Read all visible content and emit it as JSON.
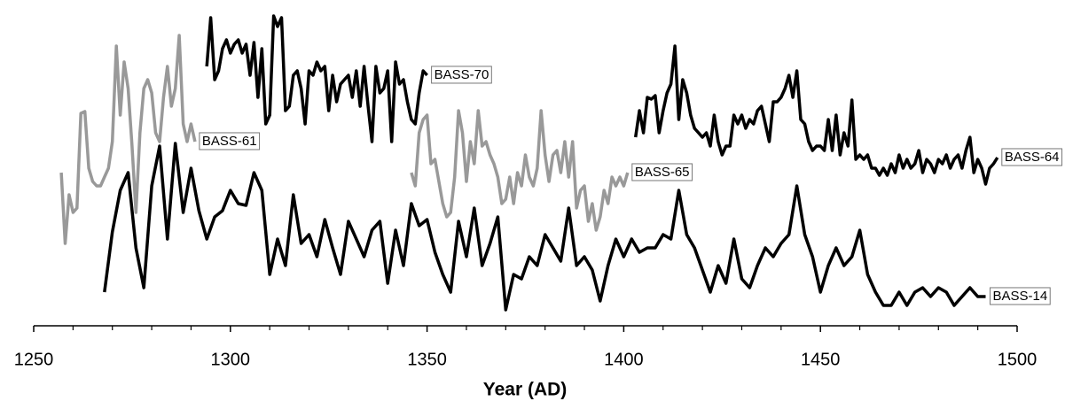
{
  "chart_data": {
    "type": "line",
    "x_label": "Year (AD)",
    "xlim": [
      1250,
      1500
    ],
    "xticks": [
      1250,
      1300,
      1350,
      1400,
      1450,
      1500
    ],
    "xminor_ticks": [
      1260,
      1270,
      1280,
      1290,
      1310,
      1320,
      1330,
      1340,
      1360,
      1370,
      1380,
      1390,
      1410,
      1420,
      1430,
      1440,
      1460,
      1470,
      1480,
      1490
    ],
    "ylim": [
      0,
      360
    ],
    "series": [
      {
        "name": "BASS-61",
        "color": "#999999",
        "x": [
          1257,
          1258,
          1259,
          1260,
          1261,
          1262,
          1263,
          1264,
          1265,
          1266,
          1267,
          1268,
          1269,
          1270,
          1271,
          1272,
          1273,
          1274,
          1275,
          1276,
          1277,
          1278,
          1279,
          1280,
          1281,
          1282,
          1283,
          1284,
          1285,
          1286,
          1287,
          1288,
          1289,
          1290,
          1291
        ],
        "values": [
          173,
          93,
          148,
          128,
          133,
          240,
          242,
          178,
          163,
          158,
          158,
          168,
          178,
          208,
          316,
          238,
          298,
          268,
          203,
          128,
          218,
          268,
          278,
          263,
          218,
          208,
          258,
          293,
          248,
          268,
          328,
          228,
          208,
          228,
          208
        ]
      },
      {
        "name": "BASS-70",
        "color": "#000000",
        "x": [
          1294,
          1295,
          1296,
          1297,
          1298,
          1299,
          1300,
          1301,
          1302,
          1303,
          1304,
          1305,
          1306,
          1307,
          1308,
          1309,
          1310,
          1311,
          1312,
          1313,
          1314,
          1315,
          1316,
          1317,
          1318,
          1319,
          1320,
          1321,
          1322,
          1323,
          1324,
          1325,
          1326,
          1327,
          1328,
          1329,
          1330,
          1331,
          1332,
          1333,
          1334,
          1335,
          1336,
          1337,
          1338,
          1339,
          1340,
          1341,
          1342,
          1343,
          1344,
          1345,
          1346,
          1347,
          1348,
          1349,
          1350
        ],
        "values": [
          293,
          348,
          278,
          288,
          313,
          323,
          308,
          318,
          323,
          308,
          318,
          283,
          320,
          258,
          313,
          228,
          238,
          350,
          338,
          348,
          243,
          248,
          283,
          288,
          268,
          228,
          288,
          283,
          298,
          288,
          293,
          243,
          283,
          253,
          273,
          278,
          283,
          258,
          288,
          248,
          293,
          248,
          208,
          293,
          263,
          268,
          288,
          208,
          298,
          273,
          278,
          253,
          233,
          228,
          263,
          288,
          283
        ]
      },
      {
        "name": "BASS-65",
        "color": "#999999",
        "x": [
          1346,
          1347,
          1348,
          1349,
          1350,
          1351,
          1352,
          1353,
          1354,
          1355,
          1356,
          1357,
          1358,
          1359,
          1360,
          1361,
          1362,
          1363,
          1364,
          1365,
          1366,
          1367,
          1368,
          1369,
          1370,
          1371,
          1372,
          1373,
          1374,
          1375,
          1376,
          1377,
          1378,
          1379,
          1380,
          1381,
          1382,
          1383,
          1384,
          1385,
          1386,
          1387,
          1388,
          1389,
          1390,
          1391,
          1392,
          1393,
          1394,
          1395,
          1396,
          1397,
          1398,
          1399,
          1400,
          1401
        ],
        "values": [
          173,
          158,
          218,
          233,
          238,
          183,
          188,
          163,
          138,
          123,
          128,
          168,
          243,
          218,
          163,
          208,
          183,
          243,
          203,
          208,
          193,
          183,
          168,
          138,
          143,
          168,
          138,
          173,
          158,
          193,
          168,
          158,
          178,
          243,
          193,
          163,
          193,
          198,
          173,
          208,
          168,
          208,
          133,
          153,
          158,
          118,
          138,
          108,
          123,
          153,
          138,
          168,
          158,
          168,
          158,
          173
        ]
      },
      {
        "name": "BASS-64",
        "color": "#000000",
        "x": [
          1403,
          1404,
          1405,
          1406,
          1407,
          1408,
          1409,
          1410,
          1411,
          1412,
          1413,
          1414,
          1415,
          1416,
          1417,
          1418,
          1419,
          1420,
          1421,
          1422,
          1423,
          1424,
          1425,
          1426,
          1427,
          1428,
          1429,
          1430,
          1431,
          1432,
          1433,
          1434,
          1435,
          1436,
          1437,
          1438,
          1439,
          1440,
          1441,
          1442,
          1443,
          1444,
          1445,
          1446,
          1447,
          1448,
          1449,
          1450,
          1451,
          1452,
          1453,
          1454,
          1455,
          1456,
          1457,
          1458,
          1459,
          1460,
          1461,
          1462,
          1463,
          1464,
          1465,
          1466,
          1467,
          1468,
          1469,
          1470,
          1471,
          1472,
          1473,
          1474,
          1475,
          1476,
          1477,
          1478,
          1479,
          1480,
          1481,
          1482,
          1483,
          1484,
          1485,
          1486,
          1487,
          1488,
          1489,
          1490,
          1491,
          1492,
          1493,
          1494,
          1495
        ],
        "values": [
          213,
          243,
          218,
          258,
          256,
          260,
          218,
          243,
          263,
          273,
          316,
          233,
          278,
          263,
          238,
          223,
          218,
          213,
          218,
          203,
          238,
          208,
          193,
          203,
          203,
          238,
          228,
          238,
          223,
          233,
          228,
          243,
          248,
          228,
          208,
          253,
          253,
          258,
          268,
          283,
          258,
          288,
          233,
          228,
          208,
          198,
          203,
          203,
          198,
          233,
          198,
          238,
          193,
          218,
          203,
          255,
          188,
          193,
          188,
          193,
          178,
          178,
          170,
          178,
          170,
          183,
          173,
          193,
          178,
          188,
          178,
          183,
          198,
          173,
          188,
          183,
          173,
          188,
          183,
          193,
          178,
          188,
          193,
          178,
          198,
          213,
          173,
          188,
          178,
          160,
          178,
          183,
          190
        ]
      },
      {
        "name": "BASS-14",
        "color": "#000000",
        "x": [
          1268,
          1270,
          1272,
          1274,
          1276,
          1278,
          1280,
          1282,
          1284,
          1286,
          1288,
          1290,
          1292,
          1294,
          1296,
          1298,
          1300,
          1302,
          1304,
          1306,
          1308,
          1310,
          1312,
          1314,
          1316,
          1318,
          1320,
          1322,
          1324,
          1326,
          1328,
          1330,
          1332,
          1334,
          1336,
          1338,
          1340,
          1342,
          1344,
          1346,
          1348,
          1350,
          1352,
          1354,
          1356,
          1358,
          1360,
          1362,
          1364,
          1366,
          1368,
          1370,
          1372,
          1374,
          1376,
          1378,
          1380,
          1382,
          1384,
          1386,
          1388,
          1390,
          1392,
          1394,
          1396,
          1398,
          1400,
          1402,
          1404,
          1406,
          1408,
          1410,
          1412,
          1414,
          1416,
          1418,
          1420,
          1422,
          1424,
          1426,
          1428,
          1430,
          1432,
          1434,
          1436,
          1438,
          1440,
          1442,
          1444,
          1446,
          1448,
          1450,
          1452,
          1454,
          1456,
          1458,
          1460,
          1462,
          1464,
          1466,
          1468,
          1470,
          1472,
          1474,
          1476,
          1478,
          1480,
          1482,
          1484,
          1486,
          1488,
          1490,
          1492
        ],
        "values": [
          38,
          106,
          153,
          173,
          88,
          43,
          158,
          203,
          98,
          206,
          128,
          178,
          130,
          98,
          123,
          130,
          153,
          138,
          136,
          173,
          153,
          58,
          98,
          68,
          148,
          93,
          103,
          78,
          120,
          88,
          58,
          118,
          98,
          78,
          108,
          118,
          48,
          108,
          68,
          138,
          113,
          120,
          83,
          58,
          38,
          118,
          78,
          133,
          68,
          93,
          123,
          18,
          58,
          53,
          78,
          68,
          103,
          88,
          73,
          133,
          68,
          78,
          63,
          28,
          68,
          98,
          78,
          98,
          83,
          88,
          88,
          103,
          98,
          153,
          103,
          88,
          63,
          38,
          68,
          48,
          98,
          53,
          43,
          68,
          88,
          78,
          93,
          103,
          158,
          103,
          78,
          38,
          68,
          88,
          68,
          78,
          108,
          58,
          38,
          23,
          23,
          38,
          23,
          38,
          43,
          33,
          43,
          38,
          23,
          33,
          43,
          33,
          33
        ]
      }
    ]
  }
}
